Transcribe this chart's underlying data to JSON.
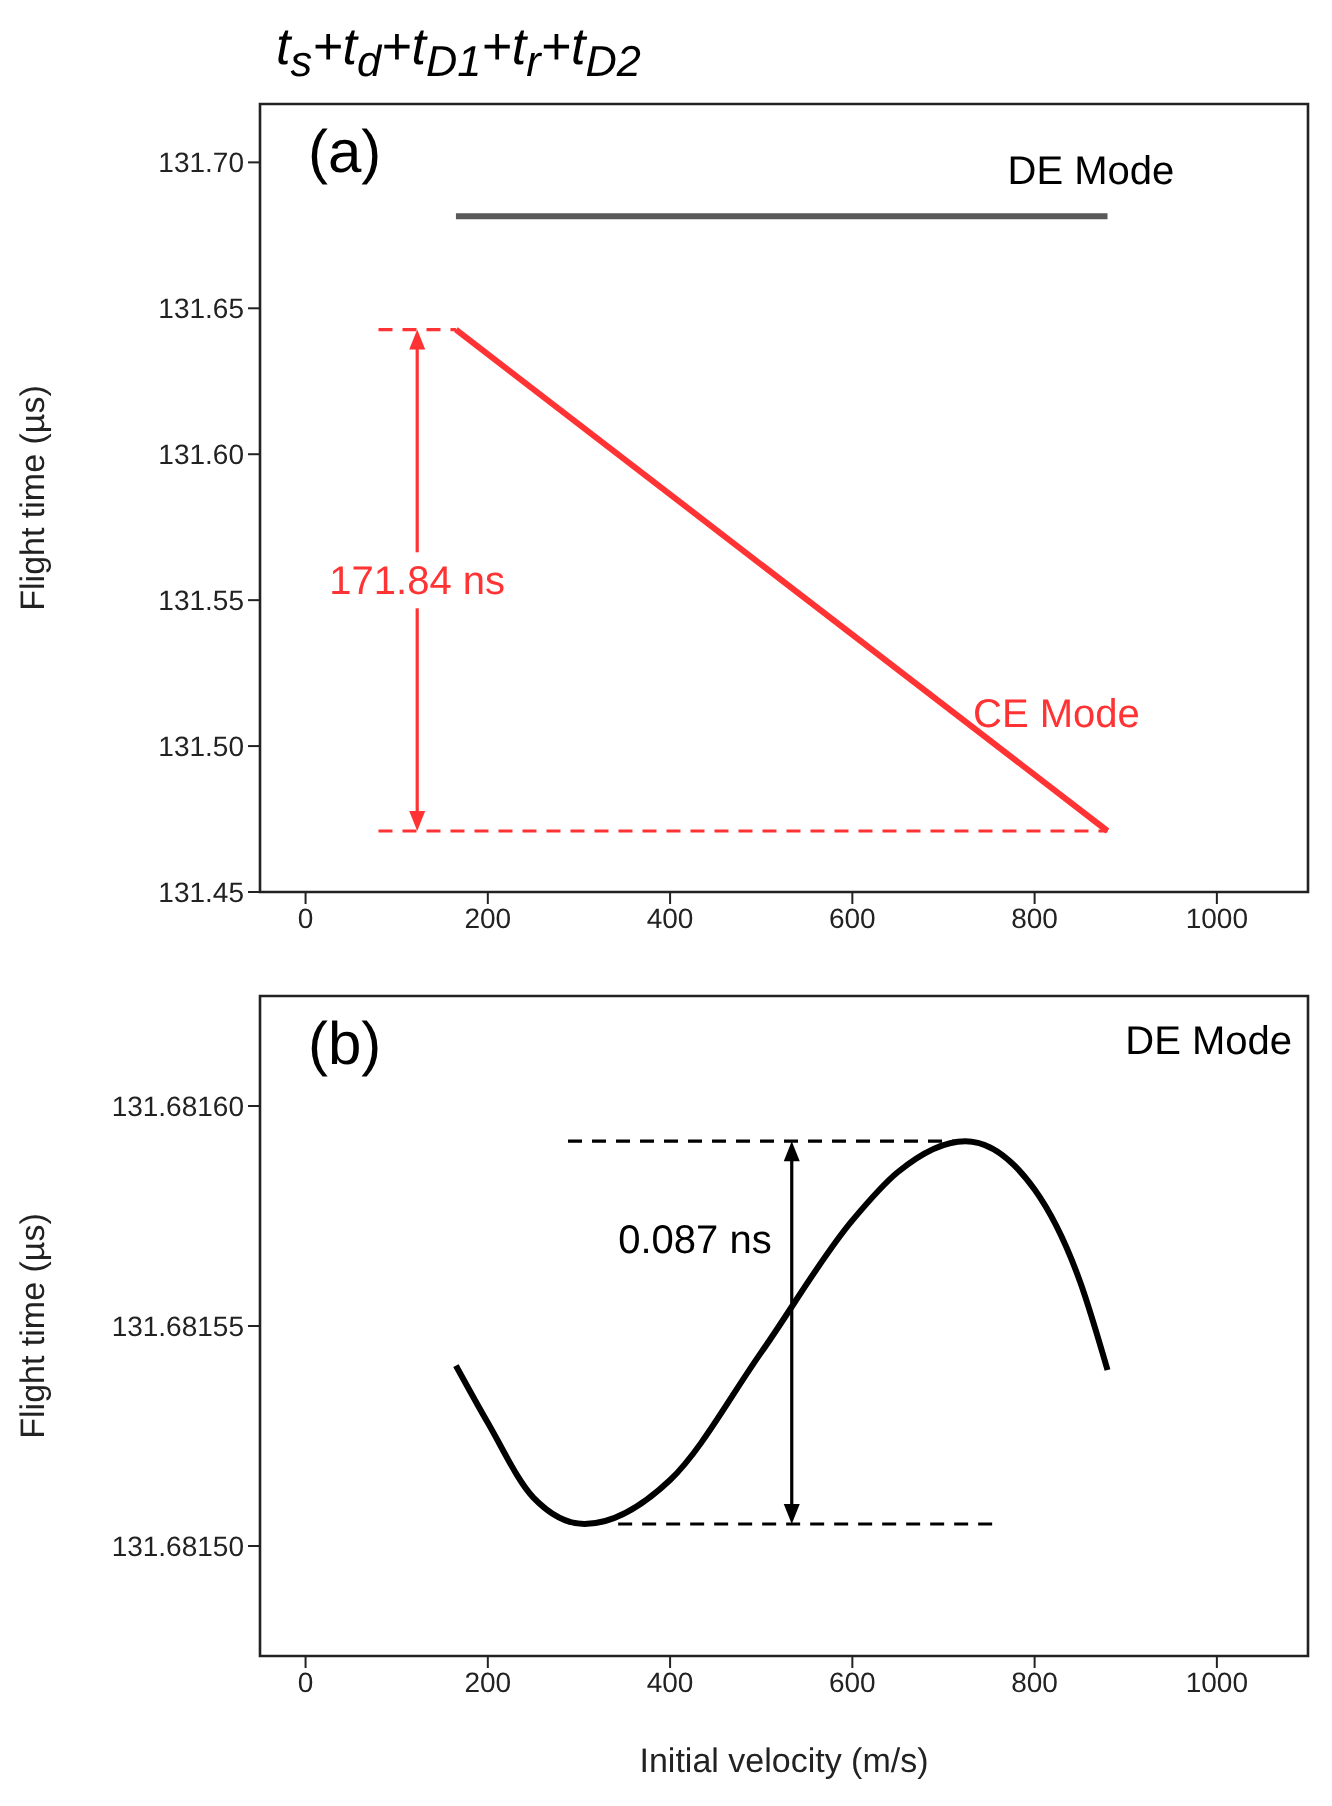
{
  "chart_data": [
    {
      "type": "line",
      "title": "t$_{s}$+t$_{d}$+t$_{D1}$+t$_{r}$+t$_{D2}$",
      "ylabel": "Flight time (µs)",
      "xlim": [
        -50,
        1100
      ],
      "xticks": [
        0,
        200,
        400,
        600,
        800,
        1000
      ],
      "ylim": [
        131.45,
        131.72
      ],
      "yticks": [
        {
          "value": 131.45,
          "label": "131.45"
        },
        {
          "value": 131.5,
          "label": "131.50"
        },
        {
          "value": 131.55,
          "label": "131.55"
        },
        {
          "value": 131.6,
          "label": "131.60"
        },
        {
          "value": 131.65,
          "label": "131.65"
        },
        {
          "value": 131.7,
          "label": "131.70"
        }
      ],
      "marker": "none",
      "grid": false,
      "series": [
        {
          "name": "DE Mode",
          "color": "#595959",
          "x": [
            165,
            880
          ],
          "values": [
            131.6815,
            131.6815
          ]
        },
        {
          "name": "CE Mode",
          "color": "#ff3333",
          "x": [
            165,
            880
          ],
          "values": [
            131.6427,
            131.4709
          ]
        },
        {
          "color": "#ff3333",
          "line_style": "dashed",
          "x": [
            80,
            165
          ],
          "values": [
            131.6427,
            131.6427
          ]
        },
        {
          "color": "#ff3333",
          "line_style": "dashed",
          "x": [
            80,
            880
          ],
          "values": [
            131.4709,
            131.4709
          ]
        }
      ],
      "annotations": [
        "(a)",
        "171.84 ns"
      ]
    },
    {
      "type": "line",
      "xlabel": "Initial velocity (m/s)",
      "ylabel": "Flight time (µs)",
      "xlim": [
        -50,
        1100
      ],
      "xticks": [
        0,
        200,
        400,
        600,
        800,
        1000
      ],
      "ylim": [
        131.681475,
        131.681625
      ],
      "yticks": [
        {
          "value": 131.6815,
          "label": "131.68150"
        },
        {
          "value": 131.68155,
          "label": "131.68155"
        },
        {
          "value": 131.6816,
          "label": "131.68160"
        }
      ],
      "marker": "none",
      "grid": false,
      "series": [
        {
          "name": "DE Mode",
          "color": "#000000",
          "x": [
            165,
            200,
            250,
            306,
            400,
            500,
            600,
            650,
            724,
            800,
            850,
            880
          ],
          "values": [
            131.681541,
            131.681528,
            131.681511,
            131.681505,
            131.681515,
            131.681544,
            131.681574,
            131.681585,
            131.681592,
            131.681581,
            131.68156,
            131.68154
          ]
        },
        {
          "color": "#000000",
          "line_style": "dashed",
          "x": [
            288,
            724
          ],
          "values": [
            131.681592,
            131.681592
          ]
        },
        {
          "color": "#000000",
          "line_style": "dashed",
          "x": [
            343,
            755
          ],
          "values": [
            131.681505,
            131.681505
          ]
        }
      ],
      "annotations": [
        "(b)",
        "0.087 ns"
      ]
    }
  ]
}
